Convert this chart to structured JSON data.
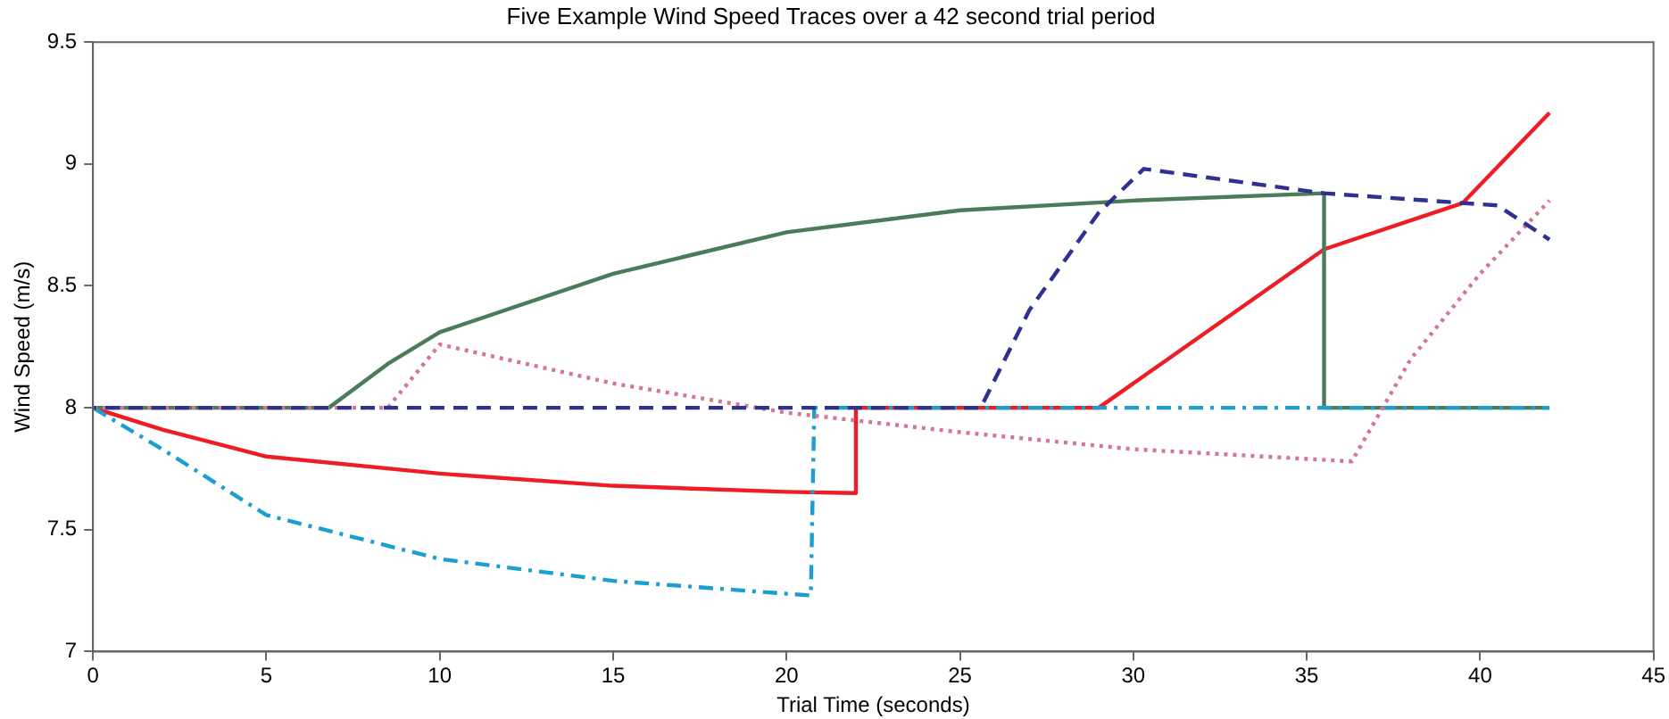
{
  "chart_data": {
    "type": "line",
    "title": "Five Example Wind Speed Traces over a 42 second trial period",
    "xlabel": "Trial Time (seconds)",
    "ylabel": "Wind Speed (m/s)",
    "xlim": [
      0,
      45
    ],
    "xticks": [
      0,
      5,
      10,
      15,
      20,
      25,
      30,
      35,
      40,
      45
    ],
    "ylim": [
      7,
      9.5
    ],
    "yticks": [
      7,
      7.5,
      8,
      8.5,
      9,
      9.5
    ],
    "grid": false,
    "legend": false,
    "marker": "none",
    "series": [
      {
        "color": "#4a7c59",
        "line_style": "solid",
        "x": [
          0,
          6.8,
          8.5,
          10,
          15,
          20,
          25,
          30,
          35.5,
          35.5,
          42
        ],
        "values": [
          8,
          8,
          8.18,
          8.31,
          8.55,
          8.72,
          8.81,
          8.85,
          8.88,
          8,
          8
        ]
      },
      {
        "color": "#2e3192",
        "line_style": "dashed",
        "x": [
          0,
          25.6,
          27,
          29,
          30.3,
          35.5,
          40.5,
          42
        ],
        "values": [
          8,
          8,
          8.4,
          8.8,
          8.98,
          8.88,
          8.83,
          8.69
        ]
      },
      {
        "color": "#d4759a",
        "line_style": "dotted",
        "x": [
          0,
          8.5,
          10,
          15,
          20,
          25,
          30,
          36.3,
          38,
          40,
          42
        ],
        "values": [
          8,
          8,
          8.26,
          8.1,
          7.98,
          7.9,
          7.83,
          7.78,
          8.2,
          8.55,
          8.85
        ]
      },
      {
        "color": "#1a9fd0",
        "line_style": "dashdot",
        "x": [
          0,
          2,
          5,
          10,
          15,
          20.7,
          20.8,
          42
        ],
        "values": [
          8,
          7.83,
          7.56,
          7.38,
          7.29,
          7.23,
          8,
          8
        ]
      },
      {
        "color": "#ee1c24",
        "line_style": "solid",
        "x": [
          0,
          2,
          5,
          10,
          15,
          20,
          22,
          22,
          29,
          31,
          35.5,
          39.5,
          42
        ],
        "values": [
          8,
          7.91,
          7.8,
          7.73,
          7.68,
          7.655,
          7.65,
          8,
          8,
          8.2,
          8.65,
          8.84,
          9.21
        ]
      }
    ]
  }
}
